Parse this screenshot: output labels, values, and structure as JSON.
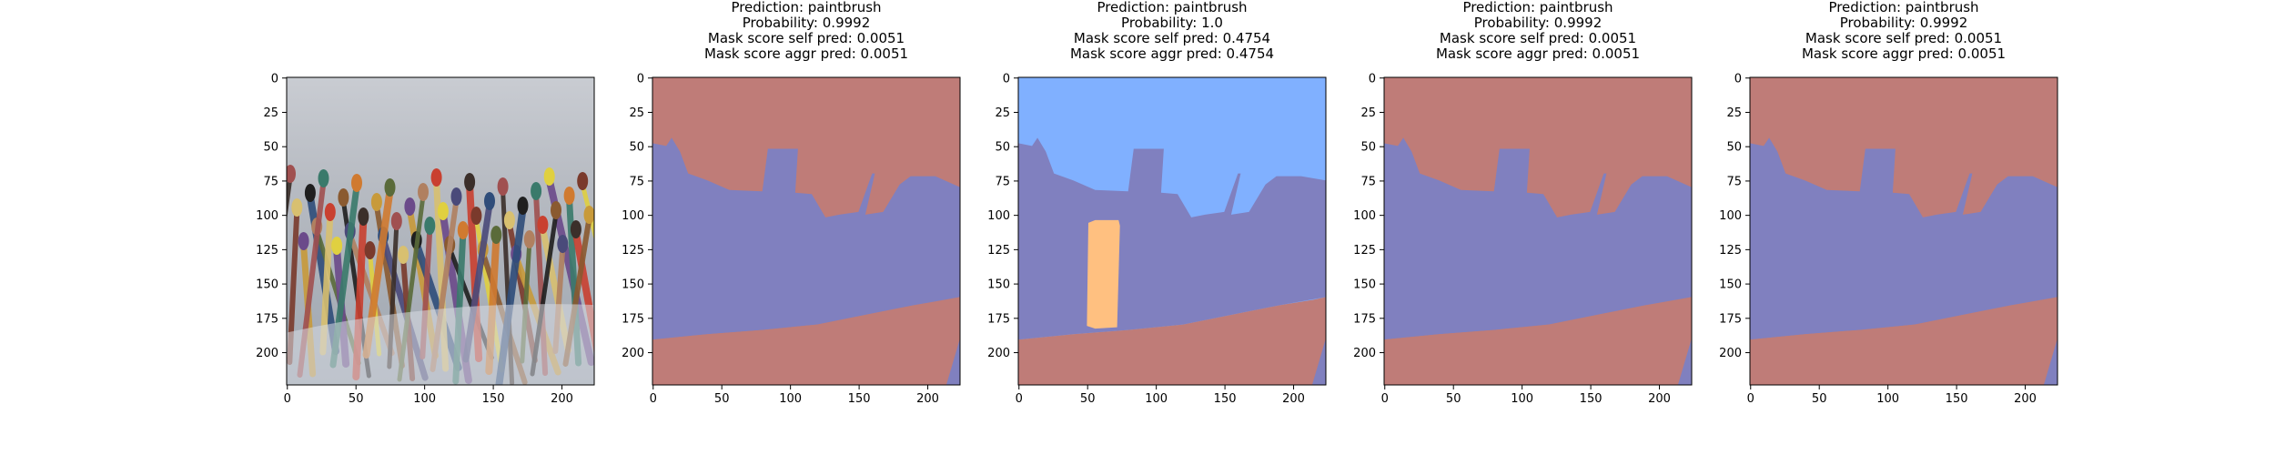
{
  "panels": [
    {
      "kind": "photo",
      "title_lines": [],
      "x_ticks": [
        "0",
        "50",
        "100",
        "150",
        "200"
      ],
      "y_ticks": [
        "0",
        "25",
        "50",
        "75",
        "100",
        "125",
        "150",
        "175",
        "200"
      ]
    },
    {
      "kind": "mask",
      "variant": "A",
      "title_lines": [
        "Prediction: paintbrush",
        "Probability: 0.9992",
        "Mask score self pred: 0.0051",
        "Mask score aggr pred: 0.0051"
      ],
      "x_ticks": [
        "0",
        "50",
        "100",
        "150",
        "200"
      ],
      "y_ticks": [
        "0",
        "25",
        "50",
        "75",
        "100",
        "125",
        "150",
        "175",
        "200"
      ]
    },
    {
      "kind": "mask",
      "variant": "B",
      "title_lines": [
        "Prediction: paintbrush",
        "Probability: 1.0",
        "Mask score self pred: 0.4754",
        "Mask score aggr pred: 0.4754"
      ],
      "x_ticks": [
        "0",
        "50",
        "100",
        "150",
        "200"
      ],
      "y_ticks": [
        "0",
        "25",
        "50",
        "75",
        "100",
        "125",
        "150",
        "175",
        "200"
      ]
    },
    {
      "kind": "mask",
      "variant": "A",
      "title_lines": [
        "Prediction: paintbrush",
        "Probability: 0.9992",
        "Mask score self pred: 0.0051",
        "Mask score aggr pred: 0.0051"
      ],
      "x_ticks": [
        "0",
        "50",
        "100",
        "150",
        "200"
      ],
      "y_ticks": [
        "0",
        "25",
        "50",
        "75",
        "100",
        "125",
        "150",
        "175",
        "200"
      ]
    },
    {
      "kind": "mask",
      "variant": "A",
      "title_lines": [
        "Prediction: paintbrush",
        "Probability: 0.9992",
        "Mask score self pred: 0.0051",
        "Mask score aggr pred: 0.0051"
      ],
      "x_ticks": [
        "0",
        "50",
        "100",
        "150",
        "200"
      ],
      "y_ticks": [
        "0",
        "25",
        "50",
        "75",
        "100",
        "125",
        "150",
        "175",
        "200"
      ]
    }
  ],
  "colors": {
    "segment_red": "#bf7c78",
    "segment_purple": "#8080bf",
    "segment_blue": "#80b0ff",
    "segment_orange": "#ffc080"
  }
}
